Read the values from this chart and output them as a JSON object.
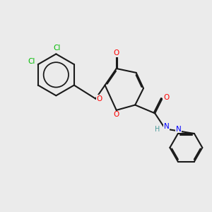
{
  "bg_color": "#ebebeb",
  "bond_color": "#1a1a1a",
  "bond_width": 1.5,
  "dbo": 0.055,
  "atom_colors": {
    "O": "#ff0000",
    "N": "#0000ff",
    "Cl": "#00bb00",
    "C": "#1a1a1a",
    "H": "#4a9a9a"
  },
  "font_size": 7.5,
  "figsize": [
    3.0,
    3.0
  ],
  "dpi": 100,
  "xlim": [
    0,
    10
  ],
  "ylim": [
    0,
    10
  ]
}
